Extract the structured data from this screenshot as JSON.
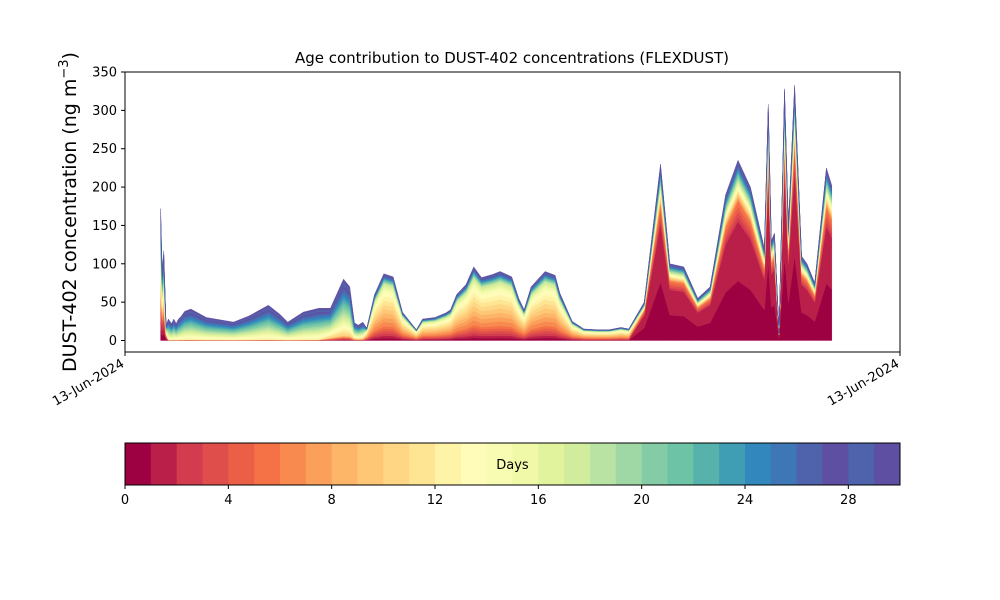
{
  "chart_data": {
    "type": "area",
    "title": "Age contribution to DUST-402 concentrations (FLEXDUST)",
    "ylabel": "DUST-402 concentration (ng m",
    "ylabel_sup": "−3",
    "ylabel_close": ")",
    "xlabel": "",
    "ylim": [
      -15,
      350
    ],
    "yticks": [
      0,
      50,
      100,
      150,
      200,
      250,
      300,
      350
    ],
    "xlim": [
      0,
      100
    ],
    "xtick_labels": [
      "13-Jun-2024",
      "13-Jun-2024"
    ],
    "stacked": true,
    "x": [
      4.6,
      4.8,
      5.0,
      5.3,
      5.6,
      6.0,
      6.3,
      6.6,
      6.9,
      7.2,
      7.7,
      8.5,
      10.5,
      14.0,
      16.0,
      18.5,
      20.0,
      21.0,
      23.0,
      25.0,
      26.5,
      27.3,
      28.2,
      29.0,
      29.6,
      30.1,
      30.7,
      31.2,
      32.2,
      33.4,
      34.6,
      35.8,
      37.6,
      38.4,
      40.0,
      41.4,
      42.0,
      42.8,
      44.0,
      45.0,
      46.0,
      47.4,
      48.4,
      49.9,
      50.8,
      51.5,
      52.4,
      54.2,
      55.5,
      56.1,
      57.7,
      59.2,
      61.0,
      62.5,
      64.0,
      65.0,
      67.0,
      69.1,
      70.3,
      72.1,
      73.9,
      75.5,
      77.5,
      79.1,
      80.7,
      82.5,
      83.0,
      83.4,
      83.8,
      84.4,
      85.1,
      85.6,
      86.4,
      87.3,
      88.0,
      89.0,
      90.5,
      91.2
    ],
    "totals": [
      172,
      90,
      117,
      20,
      28,
      22,
      28,
      22,
      28,
      31,
      38,
      41,
      30,
      24,
      32,
      46,
      34,
      24,
      37,
      42,
      42,
      60,
      80,
      70,
      23,
      20,
      24,
      16,
      60,
      87,
      83,
      37,
      14,
      28,
      30,
      36,
      40,
      60,
      73,
      96,
      82,
      86,
      90,
      83,
      55,
      40,
      70,
      90,
      85,
      62,
      25,
      15,
      14,
      14,
      17,
      15,
      50,
      230,
      100,
      96,
      55,
      70,
      190,
      235,
      200,
      120,
      308,
      130,
      140,
      10,
      328,
      150,
      333,
      110,
      100,
      75,
      225,
      202
    ],
    "colorbar": {
      "label": "Days",
      "min": 0,
      "max": 30,
      "ticks": [
        0,
        4,
        8,
        12,
        16,
        20,
        24,
        28
      ],
      "colors": [
        "#9e0142",
        "#b91f48",
        "#d23c4e",
        "#df4e4b",
        "#ea5f46",
        "#f47245",
        "#f8894f",
        "#fba05b",
        "#fdb568",
        "#fdc776",
        "#fed684",
        "#fee593",
        "#fff3a7",
        "#fffbb9",
        "#f8fcb3",
        "#f0f9a7",
        "#e2f39d",
        "#d1ec9c",
        "#b8e3a2",
        "#9fd8a4",
        "#83cca5",
        "#6cc3a5",
        "#57b2ab",
        "#3f9db4",
        "#3288bd",
        "#3e76b6",
        "#4e63ab",
        "#5e4fa2",
        "#4e63ab",
        "#5e4fa2"
      ]
    }
  }
}
